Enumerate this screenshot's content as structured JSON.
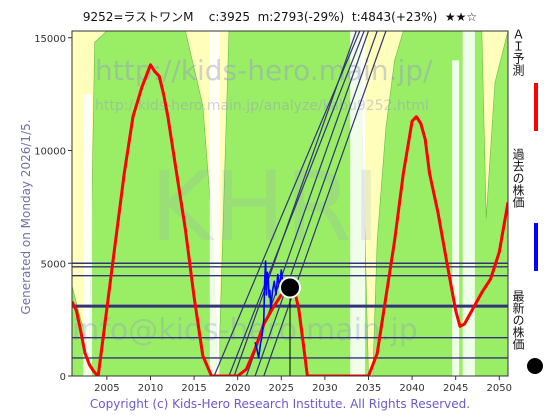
{
  "header": {
    "title": "9252=ラストワンM    c:3925  m:2793(-29%)  t:4843(+23%)  ★★☆"
  },
  "side": {
    "generated": "Generated on Monday 2026/1/5."
  },
  "footer": {
    "copyright": "Copyright (c) Kids-Hero Research Institute. All Rights Reserved."
  },
  "watermark": {
    "line1": "http://kids-hero.main.jp/",
    "line2": "http://kids-hero.main.jp/analyze/kabu9252.html",
    "line3": "KHRI",
    "line4": "info@kids-hero.main.jp"
  },
  "legend": {
    "items": [
      {
        "label": "ＡＩ予測",
        "color": "#ff0000"
      },
      {
        "label": "過去の株価",
        "color": "#0000ff"
      },
      {
        "label": "最新の株価",
        "color": "#000000"
      }
    ]
  },
  "chart_data": {
    "type": "line",
    "xlim": [
      2001,
      2051
    ],
    "ylim": [
      0,
      15300
    ],
    "x_ticks": [
      2005,
      2010,
      2015,
      2020,
      2025,
      2030,
      2035,
      2040,
      2045,
      2050
    ],
    "y_ticks": [
      0,
      5000,
      10000,
      15000
    ],
    "colors": {
      "ai": "#ff0000",
      "past": "#0000ff",
      "ref": "#333377",
      "green": "#99ee66",
      "yellow": "#ffffbb",
      "latest": "#000000"
    },
    "series": [
      {
        "name": "ＡＩ予測",
        "x": [
          2001,
          2001.5,
          2002,
          2002.5,
          2003,
          2003.5,
          2004,
          2005,
          2006,
          2007,
          2008,
          2009,
          2010,
          2010.5,
          2011,
          2011.5,
          2012,
          2013,
          2014,
          2015,
          2016,
          2017,
          2017.5,
          2018,
          2019,
          2020,
          2021,
          2022,
          2023,
          2024,
          2025,
          2026,
          2026.5,
          2027,
          2027.5,
          2028,
          2029,
          2030,
          2031,
          2032,
          2033,
          2034,
          2035,
          2036,
          2037,
          2038,
          2039,
          2040,
          2040.5,
          2041,
          2041.5,
          2042,
          2043,
          2044,
          2045,
          2045.5,
          2046,
          2047,
          2048,
          2049,
          2050,
          2051
        ],
        "y": [
          3300,
          2900,
          2000,
          1000,
          500,
          200,
          0,
          3000,
          6000,
          9000,
          11500,
          12800,
          13800,
          13500,
          13300,
          12500,
          11500,
          9000,
          6500,
          3500,
          900,
          0,
          0,
          0,
          0,
          0,
          300,
          1200,
          2300,
          3000,
          3600,
          4000,
          3800,
          3000,
          1500,
          0,
          0,
          0,
          0,
          0,
          0,
          0,
          0,
          1000,
          3500,
          6000,
          9000,
          11300,
          11500,
          11200,
          10500,
          9000,
          7200,
          5000,
          2900,
          2200,
          2300,
          3000,
          3700,
          4300,
          5500,
          7700
        ]
      },
      {
        "name": "過去の株価",
        "x": [
          2022.0,
          2022.2,
          2022.4,
          2022.6,
          2022.8,
          2023.0,
          2023.1,
          2023.2,
          2023.3,
          2023.4,
          2023.5,
          2023.6,
          2023.7,
          2023.8,
          2023.9,
          2024.0,
          2024.2,
          2024.4,
          2024.6,
          2024.8,
          2025.0,
          2025.2,
          2025.4,
          2025.6,
          2025.8,
          2026.0
        ],
        "y": [
          1500,
          1200,
          800,
          1400,
          1800,
          2500,
          4200,
          5100,
          3600,
          4600,
          4400,
          3500,
          3800,
          3000,
          3400,
          3800,
          4200,
          3600,
          4500,
          3900,
          4700,
          4000,
          3700,
          3800,
          3900,
          3925
        ]
      }
    ],
    "latest": {
      "x": 2026,
      "y": 3925
    },
    "reference_levels": [
      800,
      1700,
      3100,
      4843,
      4450,
      5000
    ]
  }
}
